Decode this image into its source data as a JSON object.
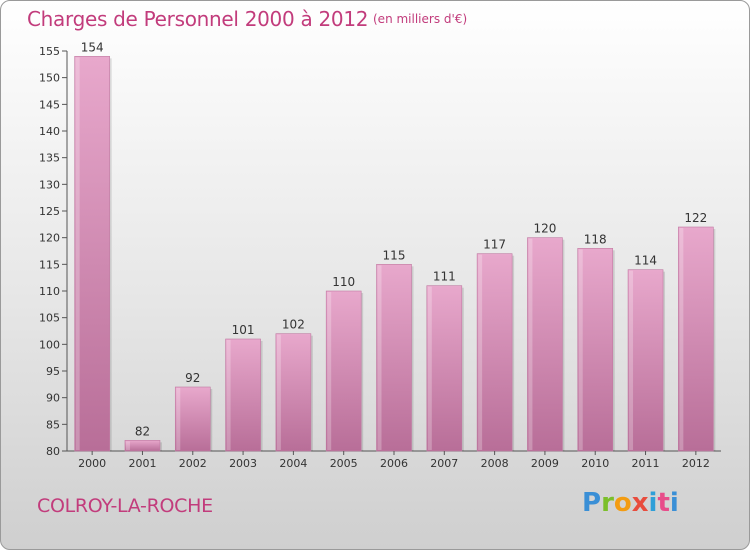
{
  "header": {
    "title": "Charges de Personnel 2000 à 2012",
    "subtitle": "(en milliers d'€)"
  },
  "footer": {
    "commune": "COLROY-LA-ROCHE",
    "logo_text": "Proxiti"
  },
  "colors": {
    "title": "#c23c7c",
    "bar_light": "#e8a8cc",
    "bar_dark": "#b86e98"
  },
  "chart_data": {
    "type": "bar",
    "title": "Charges de Personnel 2000 à 2012",
    "subtitle": "(en milliers d'€)",
    "categories": [
      "2000",
      "2001",
      "2002",
      "2003",
      "2004",
      "2005",
      "2006",
      "2007",
      "2008",
      "2009",
      "2010",
      "2011",
      "2012"
    ],
    "values": [
      154,
      82,
      92,
      101,
      102,
      110,
      115,
      111,
      117,
      120,
      118,
      114,
      122
    ],
    "ylim": [
      80,
      155
    ],
    "yticks": [
      80,
      85,
      90,
      95,
      100,
      105,
      110,
      115,
      120,
      125,
      130,
      135,
      140,
      145,
      150,
      155
    ],
    "grid": false,
    "data_labels": true
  }
}
